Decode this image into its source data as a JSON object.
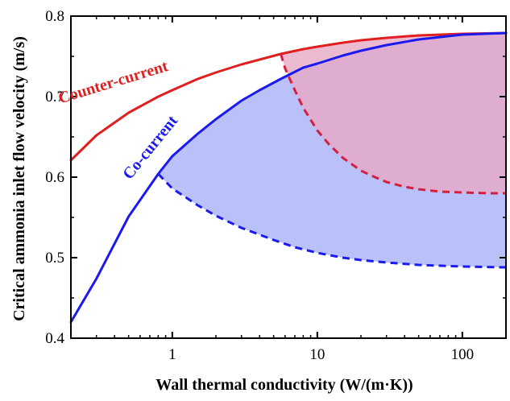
{
  "chart_data": {
    "type": "line",
    "title": "",
    "xlabel": "Wall thermal conductivity (W/(m·K))",
    "ylabel": "Critical ammonia inlet flow velocity (m/s)",
    "xscale": "log",
    "xlim": [
      0.2,
      200
    ],
    "ylim": [
      0.4,
      0.8
    ],
    "xticks": [
      1,
      10,
      100
    ],
    "xtick_labels": [
      "1",
      "10",
      "100"
    ],
    "yticks": [
      0.4,
      0.5,
      0.6,
      0.7,
      0.8
    ],
    "ytick_labels": [
      "0.4",
      "0.5",
      "0.6",
      "0.7",
      "0.8"
    ],
    "grid": false,
    "series": [
      {
        "name": "Counter-current",
        "color": "#e02020",
        "style": "solid",
        "x": [
          0.2,
          0.3,
          0.5,
          0.8,
          1,
          1.5,
          2,
          3,
          4,
          5.6,
          8,
          10,
          15,
          20,
          30,
          50,
          100,
          200
        ],
        "y": [
          0.621,
          0.652,
          0.68,
          0.7,
          0.708,
          0.722,
          0.73,
          0.74,
          0.746,
          0.753,
          0.759,
          0.762,
          0.767,
          0.77,
          0.773,
          0.776,
          0.778,
          0.779
        ]
      },
      {
        "name": "Co-current",
        "color": "#1a1aee",
        "style": "solid",
        "x": [
          0.2,
          0.3,
          0.5,
          0.8,
          1,
          1.5,
          2,
          3,
          4,
          5.6,
          8,
          10,
          15,
          20,
          30,
          50,
          100,
          200
        ],
        "y": [
          0.42,
          0.474,
          0.551,
          0.604,
          0.626,
          0.654,
          0.672,
          0.695,
          0.708,
          0.722,
          0.736,
          0.741,
          0.751,
          0.757,
          0.764,
          0.771,
          0.777,
          0.779
        ]
      },
      {
        "name": "",
        "color": "#d42040",
        "style": "dashed",
        "x": [
          5.6,
          6,
          7,
          8,
          10,
          12,
          15,
          20,
          25,
          30,
          40,
          50,
          70,
          100,
          150,
          200
        ],
        "y": [
          0.753,
          0.735,
          0.708,
          0.686,
          0.658,
          0.641,
          0.624,
          0.608,
          0.6,
          0.594,
          0.588,
          0.585,
          0.582,
          0.581,
          0.58,
          0.58
        ]
      },
      {
        "name": "",
        "color": "#1a1aee",
        "style": "dashed",
        "x": [
          0.8,
          1,
          1.5,
          2,
          3,
          5,
          7,
          10,
          15,
          20,
          30,
          50,
          100,
          200
        ],
        "y": [
          0.604,
          0.586,
          0.565,
          0.552,
          0.537,
          0.522,
          0.513,
          0.506,
          0.5,
          0.497,
          0.494,
          0.491,
          0.489,
          0.488
        ]
      }
    ],
    "annotations": [
      {
        "text": "Counter-current",
        "color": "#e02020",
        "x": 0.4,
        "y": 0.712,
        "rotation": -17
      },
      {
        "text": "Co-current",
        "color": "#1a1aee",
        "x": 0.75,
        "y": 0.633,
        "rotation": -51
      }
    ],
    "fills": [
      {
        "between": [
          "Co-current",
          "Co-current lower boundary"
        ],
        "color": "#aeb6f8"
      },
      {
        "between": [
          "Counter-current",
          "Counter-current lower boundary"
        ],
        "color": "#e8a8c4"
      }
    ]
  }
}
